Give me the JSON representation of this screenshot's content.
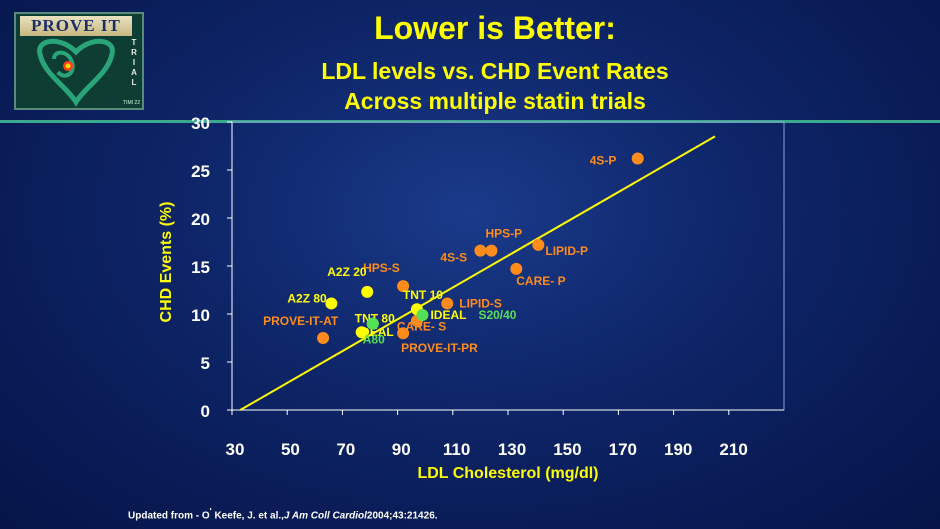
{
  "logo": {
    "title": "PROVE IT",
    "side_letters": [
      "T",
      "R",
      "I",
      "A",
      "L"
    ],
    "sub": "TIMI 22"
  },
  "title": "Lower is Better:",
  "subtitle_line1": "LDL levels vs. CHD Event Rates",
  "subtitle_line2": "Across multiple statin trials",
  "footer": {
    "prefix": "Updated from -  O",
    "sup": "'",
    "authors": "Keefe, J. et al.,",
    "journal": "J Am Coll Cardiol",
    "citation": "2004;43:2142",
    "suffix": "6."
  },
  "colors": {
    "background": "#0d2466",
    "accent_yellow": "#ffff00",
    "orange": "#ff8c1a",
    "green": "#55e055",
    "rule": "#3aa98c"
  },
  "chart_data": {
    "type": "scatter",
    "xlabel": "LDL Cholesterol (mg/dl)",
    "ylabel": "CHD Events (%)",
    "xlim": [
      30,
      230
    ],
    "ylim": [
      0,
      30
    ],
    "x_ticks": [
      30,
      50,
      70,
      90,
      110,
      130,
      150,
      170,
      190,
      210
    ],
    "y_ticks": [
      0,
      5,
      10,
      15,
      20,
      25,
      30
    ],
    "grid": false,
    "trendline": {
      "x1": 33,
      "y1": 0,
      "x2": 205,
      "y2": 28.5
    },
    "points": [
      {
        "label": "4S-P",
        "x": 177,
        "y": 26.2,
        "color": "orange",
        "label_color": "orange"
      },
      {
        "label": "LIPID-P",
        "x": 141,
        "y": 17.2,
        "color": "orange",
        "label_color": "orange"
      },
      {
        "label": "HPS-P",
        "x": 124,
        "y": 16.6,
        "color": "orange",
        "label_color": "orange"
      },
      {
        "label": "4S-S",
        "x": 120,
        "y": 16.6,
        "color": "orange",
        "label_color": "orange"
      },
      {
        "label": "CARE- P",
        "x": 133,
        "y": 14.7,
        "color": "orange",
        "label_color": "orange"
      },
      {
        "label": "HPS-S",
        "x": 92,
        "y": 12.9,
        "color": "orange",
        "label_color": "orange"
      },
      {
        "label": "LIPID-S",
        "x": 108,
        "y": 11.1,
        "color": "orange",
        "label_color": "orange"
      },
      {
        "label": "CARE- S",
        "x": 97,
        "y": 9.3,
        "color": "orange",
        "label_color": "orange"
      },
      {
        "label": "PROVE-IT-PR",
        "x": 92,
        "y": 8.0,
        "color": "orange",
        "label_color": "orange"
      },
      {
        "label": "PROVE-IT-AT",
        "x": 63,
        "y": 7.5,
        "color": "orange",
        "label_color": "orange"
      },
      {
        "label": "A2Z 20",
        "x": 79,
        "y": 12.3,
        "color": "yellow",
        "label_color": "yellow"
      },
      {
        "label": "A2Z 80",
        "x": 66,
        "y": 11.1,
        "color": "yellow",
        "label_color": "yellow"
      },
      {
        "label": "TNT 10",
        "x": 97,
        "y": 10.5,
        "color": "yellow",
        "label_color": "yellow"
      },
      {
        "label": "TNT 80",
        "x": 81,
        "y": 9.0,
        "color": "yellow",
        "label_color": "yellow"
      },
      {
        "label": "IDEAL",
        "x": 77,
        "y": 8.1,
        "color": "yellow",
        "label_color": "yellow"
      },
      {
        "label": "IDEAL",
        "x": 99,
        "y": 9.9,
        "color": "green",
        "label_color": "yellow"
      },
      {
        "label": "S20/40",
        "x": 99,
        "y": 9.9,
        "color": "green",
        "label_color": "green",
        "label_only": true
      },
      {
        "label": "A80",
        "x": 81,
        "y": 9.0,
        "color": "green",
        "label_color": "green"
      }
    ]
  }
}
